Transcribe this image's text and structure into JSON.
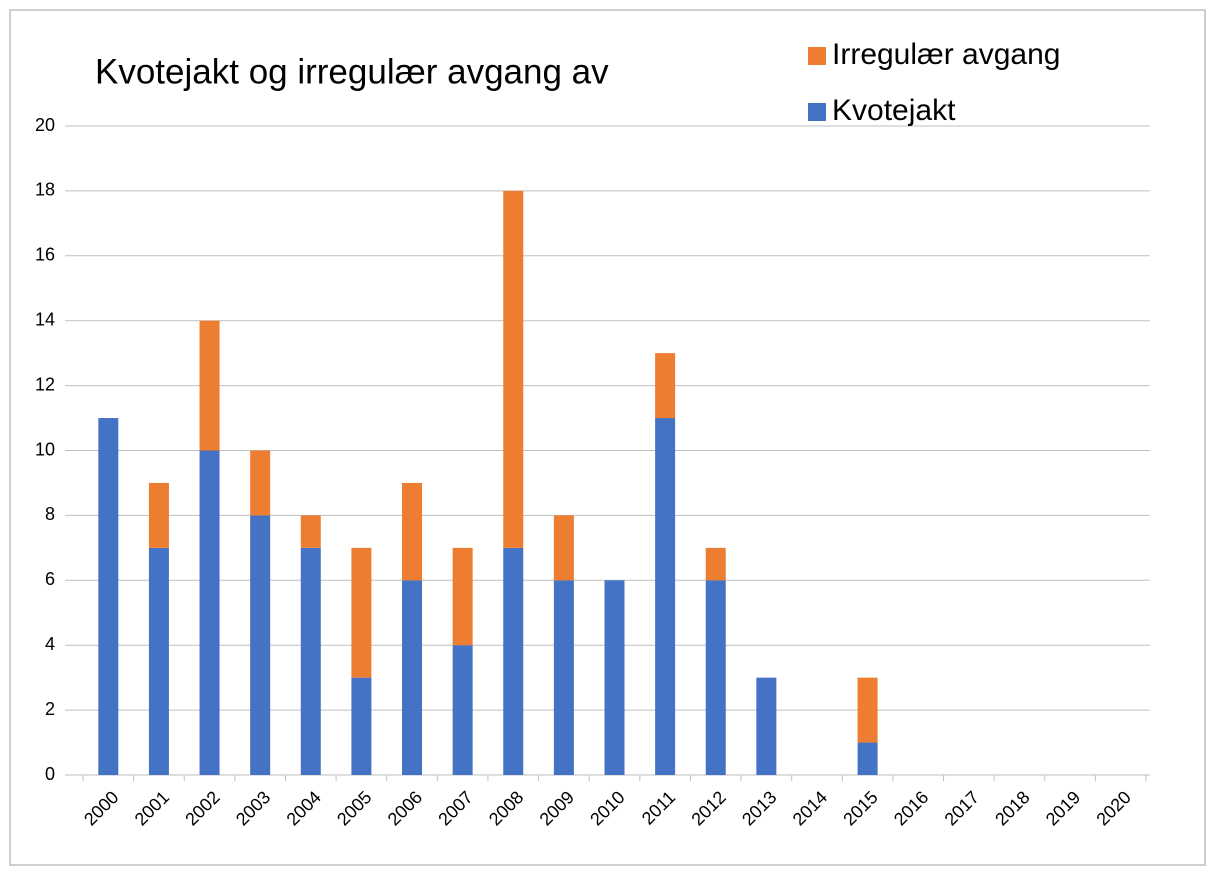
{
  "chart_data": {
    "type": "bar",
    "stacked": true,
    "title": "Kvotejakt og  irregulær avgang av",
    "categories": [
      "2000",
      "2001",
      "2002",
      "2003",
      "2004",
      "2005",
      "2006",
      "2007",
      "2008",
      "2009",
      "2010",
      "2011",
      "2012",
      "2013",
      "2014",
      "2015",
      "2016",
      "2017",
      "2018",
      "2019",
      "2020"
    ],
    "series": [
      {
        "name": "Kvotejakt",
        "color": "#4472c4",
        "values": [
          11,
          7,
          10,
          8,
          7,
          3,
          6,
          4,
          7,
          6,
          6,
          11,
          6,
          3,
          0,
          1,
          0,
          0,
          0,
          0,
          0
        ]
      },
      {
        "name": "Irregulær avgang",
        "color": "#ed7d31",
        "values": [
          0,
          2,
          4,
          2,
          1,
          4,
          3,
          3,
          11,
          2,
          0,
          2,
          1,
          0,
          0,
          2,
          0,
          0,
          0,
          0,
          0
        ]
      }
    ],
    "ylim": [
      0,
      20
    ],
    "yticks": [
      0,
      2,
      4,
      6,
      8,
      10,
      12,
      14,
      16,
      18,
      20
    ],
    "grid": true,
    "legend": "top-right"
  }
}
